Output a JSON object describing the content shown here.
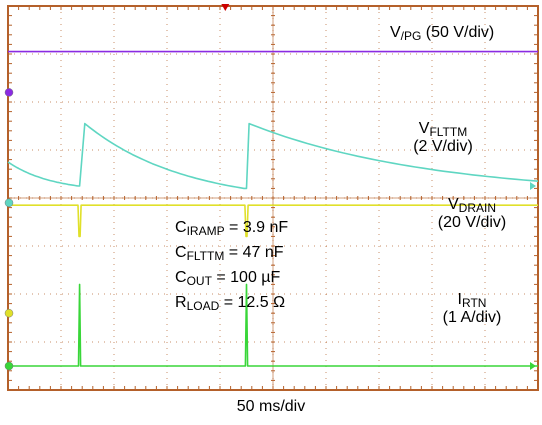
{
  "chart_data": {
    "type": "line",
    "title": "",
    "xlabel": "",
    "ylabel": "",
    "horizontal_divisions": 10,
    "vertical_divisions": 8,
    "grid": true,
    "x_scale": "50 ms/div",
    "colors": {
      "background": "#ffffff",
      "frame": "#b4602a",
      "grid": "#b4602a",
      "vpg": "#8a2be2",
      "vflttm": "#5fd6c2",
      "vdrain": "#e0e02a",
      "irtn": "#39d639",
      "trigger": "#cc0000"
    },
    "x": [
      0,
      1.33,
      1.35,
      1.4,
      4.05,
      4.45,
      4.5,
      4.52,
      10.0
    ],
    "series": [
      {
        "name": "V/PG",
        "scale": "50 V/div",
        "x": [
          0,
          10
        ],
        "values": [
          7.05,
          7.05
        ]
      },
      {
        "name": "VFLTTM",
        "scale": "2 V/div",
        "x": [
          0,
          1.33,
          1.35,
          1.45,
          4.45,
          4.5,
          4.55,
          10.0
        ],
        "values": [
          4.75,
          4.25,
          4.25,
          5.55,
          4.2,
          4.2,
          5.55,
          4.35
        ]
      },
      {
        "name": "VDRAIN",
        "scale": "20 V/div",
        "x": [
          0,
          1.32,
          1.34,
          1.36,
          1.38,
          4.47,
          4.49,
          4.51,
          4.53,
          10.0
        ],
        "values": [
          3.85,
          3.85,
          3.2,
          3.2,
          3.85,
          3.85,
          3.2,
          3.2,
          3.85,
          3.85
        ]
      },
      {
        "name": "IRTN",
        "scale": "1 A/div",
        "x": [
          0,
          1.33,
          1.35,
          1.37,
          4.48,
          4.5,
          4.52,
          10.0
        ],
        "values": [
          0.5,
          0.5,
          2.2,
          0.5,
          0.5,
          2.2,
          0.5,
          0.5
        ]
      }
    ],
    "trace_labels": {
      "vpg": {
        "main": "V",
        "sub": "/PG",
        "rest": " (50 V/div)"
      },
      "vflttm": {
        "main": "V",
        "sub": "FLTTM",
        "scale": "(2 V/div)"
      },
      "vdrain": {
        "main": "V",
        "sub": "DRAIN",
        "scale": "(20 V/div)"
      },
      "irtn": {
        "main": "I",
        "sub": "RTN",
        "scale": "(1 A/div)"
      }
    },
    "conditions": [
      {
        "main": "C",
        "sub": "IRAMP",
        "rest": " = 3.9 nF"
      },
      {
        "main": "C",
        "sub": "FLTTM",
        "rest": " = 47 nF"
      },
      {
        "main": "C",
        "sub": "OUT",
        "rest": " = 100 µF"
      },
      {
        "main": "R",
        "sub": "LOAD",
        "rest": " = 12.5 Ω"
      }
    ],
    "x_axis_caption": "50 ms/div"
  }
}
